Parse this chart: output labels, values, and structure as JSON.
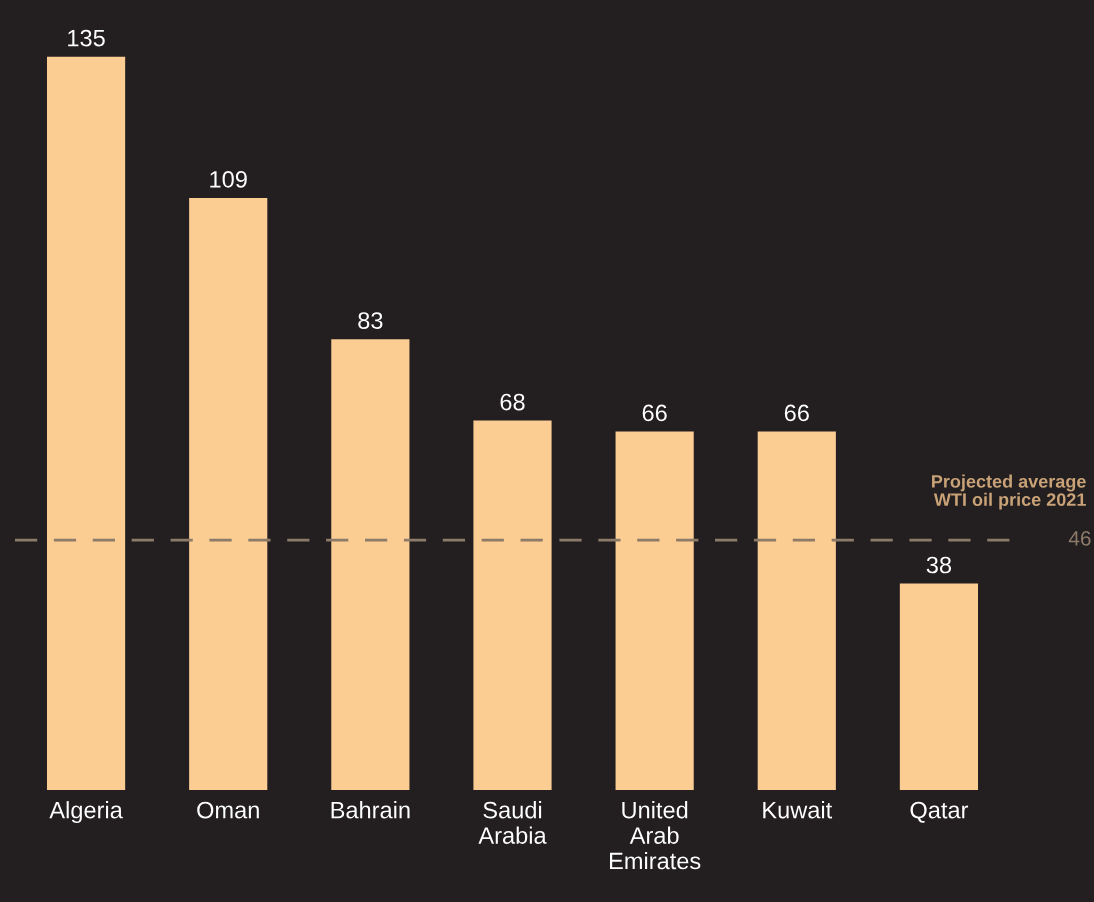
{
  "chart_data": {
    "type": "bar",
    "categories": [
      "Algeria",
      "Oman",
      "Bahrain",
      "Saudi\nArabia",
      "United\nArab\nEmirates",
      "Kuwait",
      "Qatar"
    ],
    "values": [
      135,
      109,
      83,
      68,
      66,
      66,
      38
    ],
    "color": "#fccd93",
    "tick_labels": "x",
    "data_labels": true,
    "grid": false,
    "legend": false,
    "ref_lines": [
      {
        "axis": "y",
        "value": 46,
        "label": "46",
        "color": "#8c7b68",
        "line_style": "dashed"
      }
    ],
    "annotations": [
      "Projected average\nWTI oil price 2021"
    ]
  }
}
